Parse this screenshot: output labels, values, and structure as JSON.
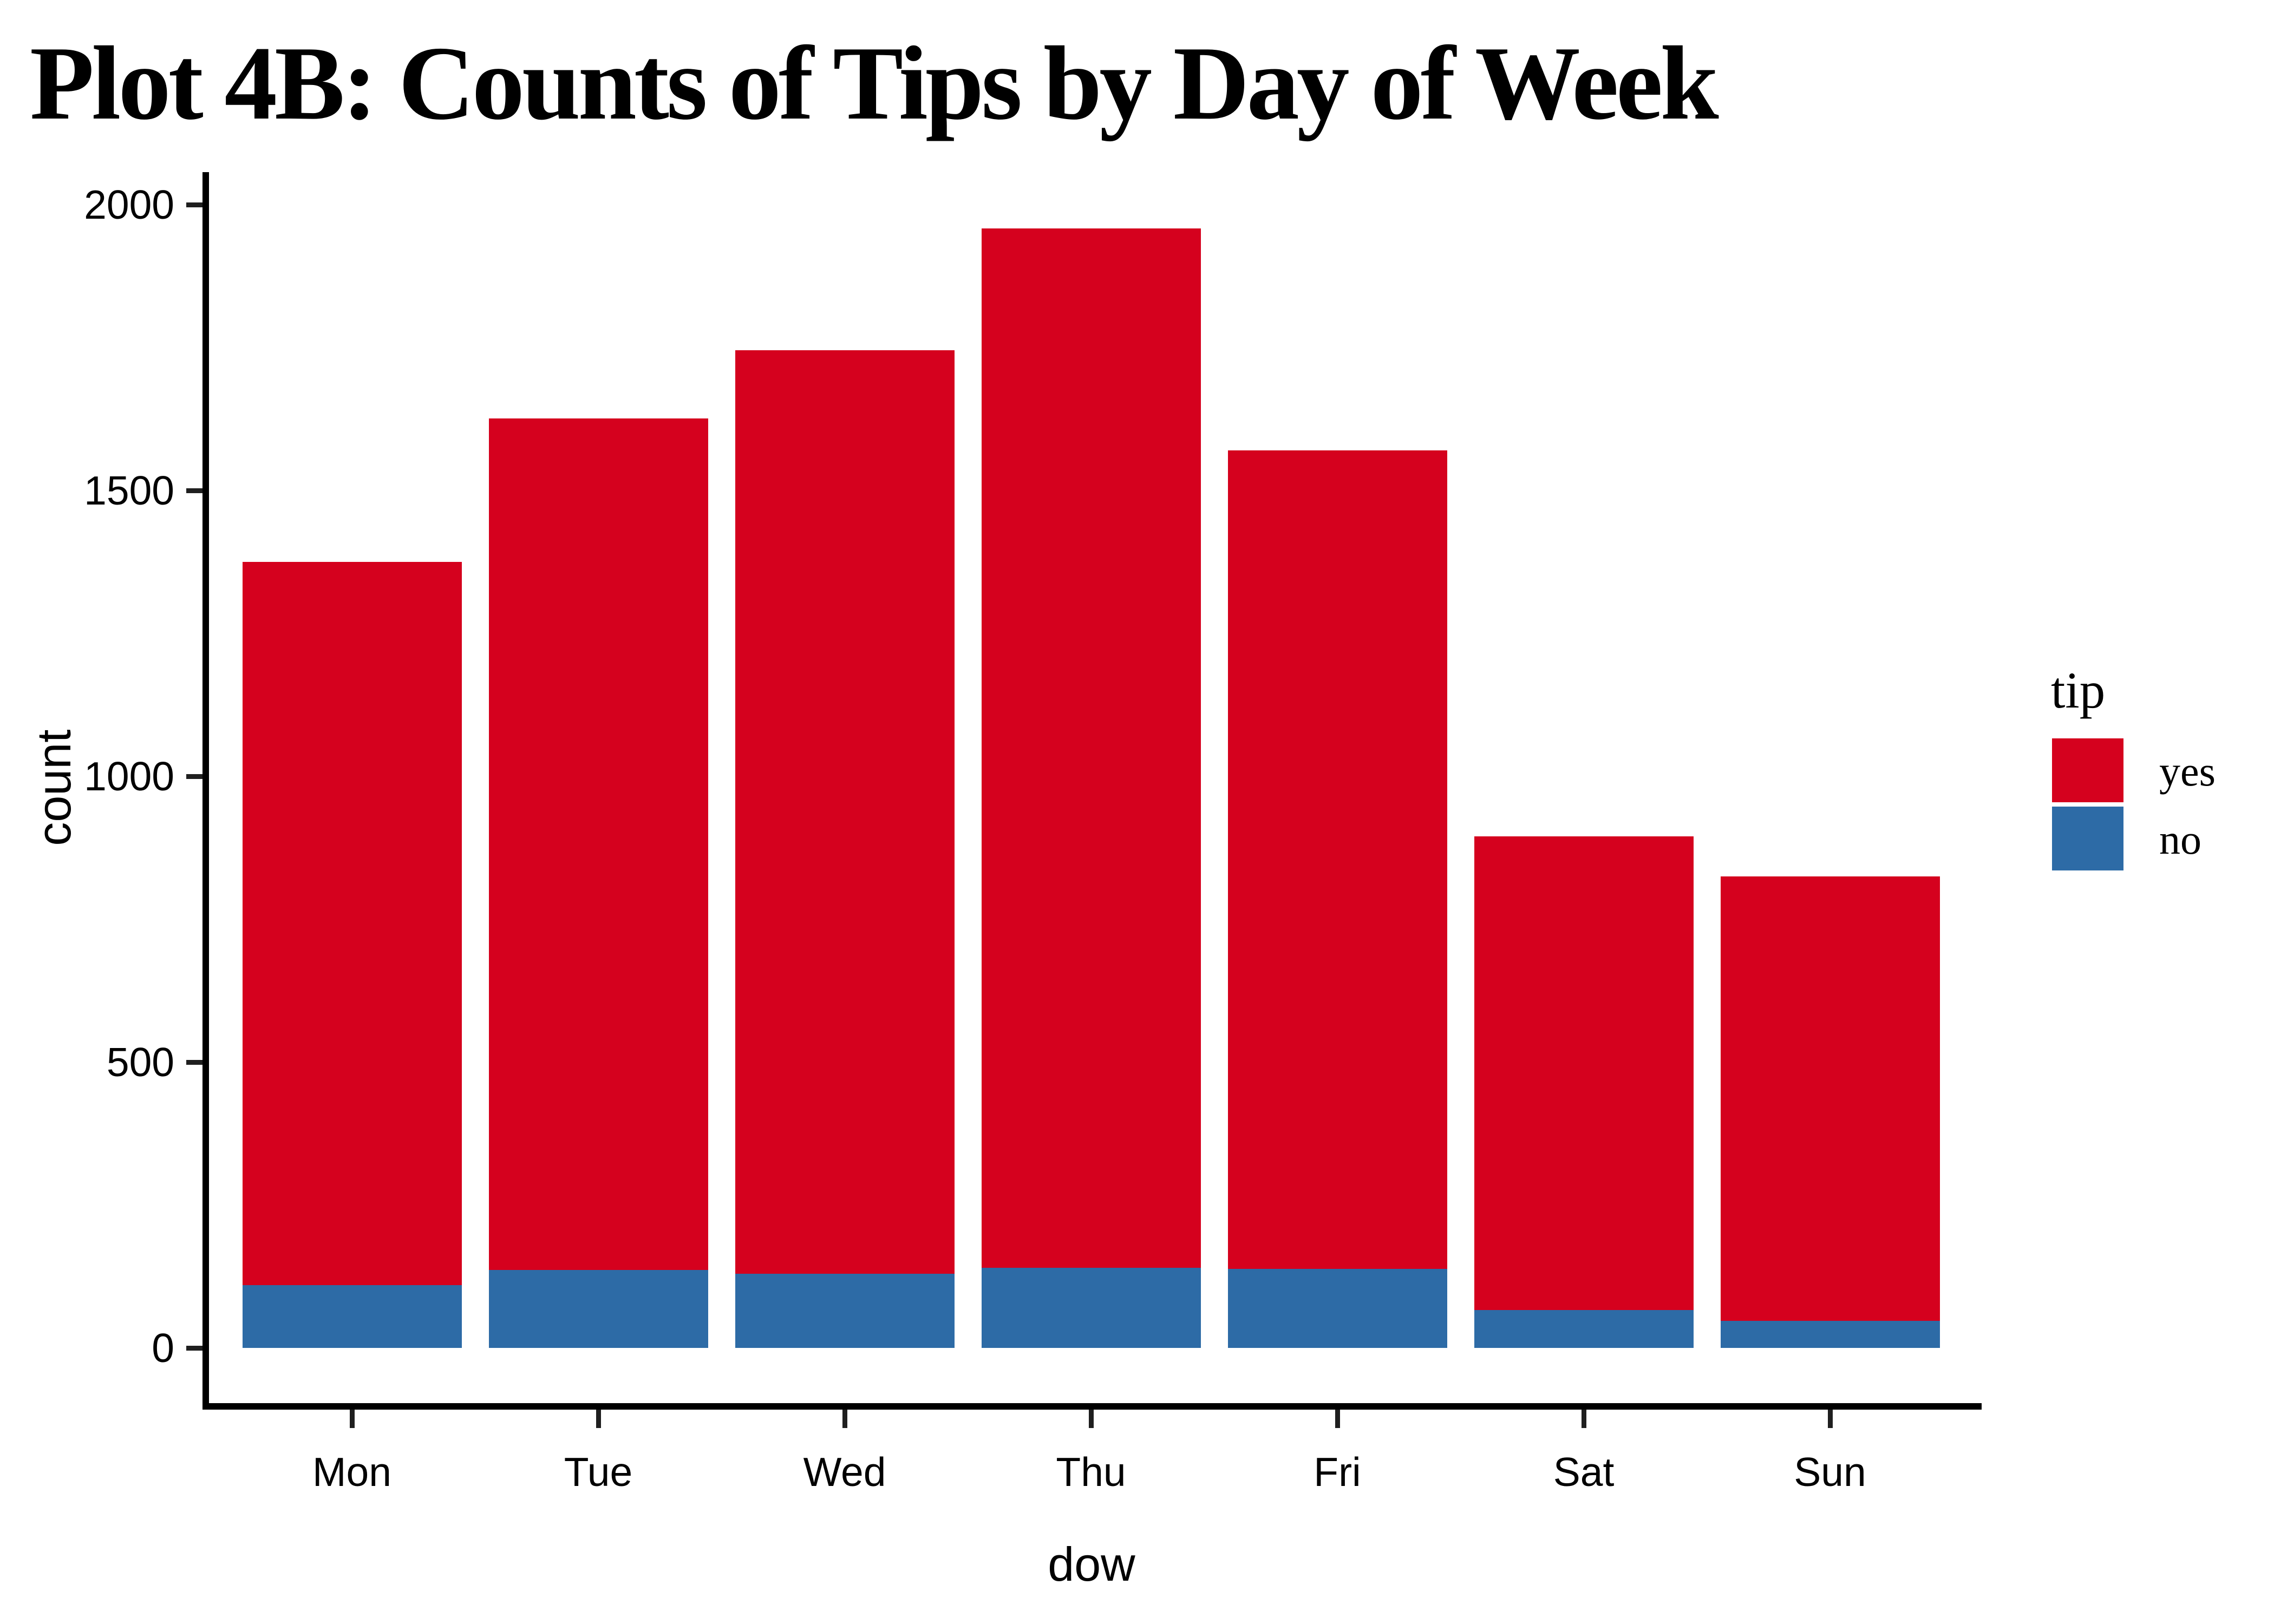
{
  "chart_data": {
    "type": "bar",
    "stacked": true,
    "title": "Plot 4B: Counts of Tips by Day of Week",
    "xlabel": "dow",
    "ylabel": "count",
    "categories": [
      "Mon",
      "Tue",
      "Wed",
      "Thu",
      "Fri",
      "Sat",
      "Sun"
    ],
    "series": [
      {
        "name": "yes",
        "color": "#D5011E",
        "values": [
          1265,
          1490,
          1615,
          1818,
          1432,
          829,
          778
        ]
      },
      {
        "name": "no",
        "color": "#2D6BA6",
        "values": [
          110,
          136,
          130,
          140,
          138,
          66,
          47
        ]
      }
    ],
    "stack_totals": [
      1375,
      1626,
      1745,
      1958,
      1570,
      895,
      825
    ],
    "y_ticks": [
      0,
      500,
      1000,
      1500,
      2000
    ],
    "ylim": [
      0,
      2000
    ],
    "grid": false,
    "legend": {
      "title": "tip",
      "position": "right",
      "entries": [
        {
          "label": "yes",
          "color": "#D5011E"
        },
        {
          "label": "no",
          "color": "#2D6BA6"
        }
      ]
    },
    "colors": {
      "background": "#FFFFFF",
      "axis": "#000000",
      "text": "#000000"
    }
  }
}
